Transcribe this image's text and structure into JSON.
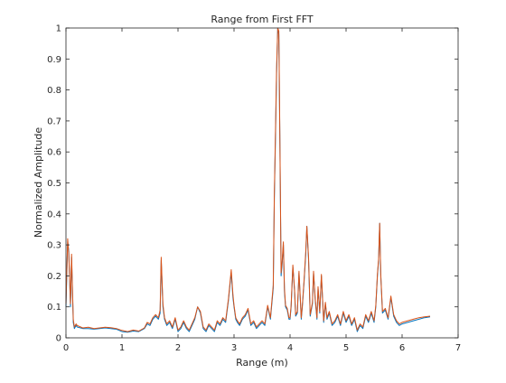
{
  "chart_data": {
    "type": "line",
    "title": "Range from First FFT",
    "xlabel": "Range (m)",
    "ylabel": "Normalized Amplitude",
    "xlim": [
      0,
      7
    ],
    "ylim": [
      0,
      1
    ],
    "xticks": [
      0,
      1,
      2,
      3,
      4,
      5,
      6,
      7
    ],
    "yticks": [
      0,
      0.1,
      0.2,
      0.3,
      0.4,
      0.5,
      0.6,
      0.7,
      0.8,
      0.9,
      1
    ],
    "xtick_labels": [
      "0",
      "1",
      "2",
      "3",
      "4",
      "5",
      "6",
      "7"
    ],
    "ytick_labels": [
      "0",
      "0.1",
      "0.2",
      "0.3",
      "0.4",
      "0.5",
      "0.6",
      "0.7",
      "0.8",
      "0.9",
      "1"
    ],
    "grid": false,
    "legend": "none",
    "colors": {
      "series1": "#0072BD",
      "series2": "#D95319",
      "axis": "#262626"
    },
    "series": [
      {
        "x": [
          0,
          0.03,
          0.05,
          0.08,
          0.1,
          0.13,
          0.15,
          0.18,
          0.2,
          0.3,
          0.4,
          0.5,
          0.6,
          0.7,
          0.8,
          0.9,
          1.0,
          1.1,
          1.2,
          1.3,
          1.4,
          1.45,
          1.5,
          1.55,
          1.6,
          1.65,
          1.68,
          1.7,
          1.73,
          1.76,
          1.8,
          1.85,
          1.9,
          1.95,
          2.0,
          2.05,
          2.1,
          2.15,
          2.2,
          2.25,
          2.3,
          2.35,
          2.4,
          2.45,
          2.5,
          2.55,
          2.6,
          2.65,
          2.7,
          2.75,
          2.8,
          2.85,
          2.9,
          2.95,
          2.98,
          3.0,
          3.03,
          3.06,
          3.1,
          3.15,
          3.2,
          3.25,
          3.3,
          3.35,
          3.4,
          3.45,
          3.5,
          3.55,
          3.6,
          3.65,
          3.7,
          3.72,
          3.74,
          3.76,
          3.78,
          3.8,
          3.82,
          3.84,
          3.86,
          3.88,
          3.9,
          3.92,
          3.95,
          3.98,
          4.0,
          4.02,
          4.05,
          4.08,
          4.1,
          4.13,
          4.16,
          4.2,
          4.22,
          4.25,
          4.28,
          4.3,
          4.33,
          4.36,
          4.4,
          4.42,
          4.45,
          4.48,
          4.5,
          4.53,
          4.56,
          4.6,
          4.63,
          4.66,
          4.7,
          4.75,
          4.8,
          4.85,
          4.9,
          4.95,
          5.0,
          5.05,
          5.1,
          5.15,
          5.2,
          5.25,
          5.3,
          5.35,
          5.4,
          5.45,
          5.5,
          5.53,
          5.56,
          5.58,
          5.6,
          5.62,
          5.65,
          5.7,
          5.75,
          5.8,
          5.85,
          5.9,
          5.95,
          6.0,
          6.1,
          6.2,
          6.3,
          6.4,
          6.5
        ],
        "y": [
          0.1,
          0.31,
          0.28,
          0.1,
          0.26,
          0.05,
          0.03,
          0.04,
          0.035,
          0.03,
          0.03,
          0.028,
          0.03,
          0.032,
          0.03,
          0.028,
          0.02,
          0.018,
          0.022,
          0.02,
          0.03,
          0.045,
          0.04,
          0.06,
          0.07,
          0.06,
          0.08,
          0.25,
          0.1,
          0.06,
          0.04,
          0.05,
          0.03,
          0.06,
          0.02,
          0.03,
          0.05,
          0.03,
          0.02,
          0.04,
          0.06,
          0.1,
          0.08,
          0.03,
          0.02,
          0.04,
          0.03,
          0.02,
          0.05,
          0.04,
          0.06,
          0.05,
          0.12,
          0.21,
          0.13,
          0.1,
          0.06,
          0.05,
          0.04,
          0.06,
          0.07,
          0.09,
          0.04,
          0.05,
          0.03,
          0.04,
          0.05,
          0.04,
          0.1,
          0.06,
          0.16,
          0.45,
          0.65,
          0.85,
          1.0,
          0.98,
          0.62,
          0.2,
          0.24,
          0.3,
          0.15,
          0.1,
          0.09,
          0.06,
          0.06,
          0.1,
          0.23,
          0.15,
          0.07,
          0.08,
          0.21,
          0.06,
          0.1,
          0.18,
          0.27,
          0.36,
          0.25,
          0.07,
          0.11,
          0.21,
          0.12,
          0.06,
          0.16,
          0.08,
          0.2,
          0.05,
          0.11,
          0.06,
          0.08,
          0.04,
          0.05,
          0.07,
          0.04,
          0.08,
          0.05,
          0.07,
          0.04,
          0.06,
          0.02,
          0.04,
          0.03,
          0.07,
          0.05,
          0.08,
          0.05,
          0.1,
          0.2,
          0.25,
          0.37,
          0.2,
          0.08,
          0.09,
          0.06,
          0.13,
          0.07,
          0.05,
          0.04,
          0.045,
          0.05,
          0.055,
          0.06,
          0.065,
          0.068
        ]
      },
      {
        "x": [
          0,
          0.03,
          0.05,
          0.08,
          0.1,
          0.13,
          0.15,
          0.18,
          0.2,
          0.3,
          0.4,
          0.5,
          0.6,
          0.7,
          0.8,
          0.9,
          1.0,
          1.1,
          1.2,
          1.3,
          1.4,
          1.45,
          1.5,
          1.55,
          1.6,
          1.65,
          1.68,
          1.7,
          1.73,
          1.76,
          1.8,
          1.85,
          1.9,
          1.95,
          2.0,
          2.05,
          2.1,
          2.15,
          2.2,
          2.25,
          2.3,
          2.35,
          2.4,
          2.45,
          2.5,
          2.55,
          2.6,
          2.65,
          2.7,
          2.75,
          2.8,
          2.85,
          2.9,
          2.95,
          2.98,
          3.0,
          3.03,
          3.06,
          3.1,
          3.15,
          3.2,
          3.25,
          3.3,
          3.35,
          3.4,
          3.45,
          3.5,
          3.55,
          3.6,
          3.65,
          3.7,
          3.72,
          3.74,
          3.76,
          3.78,
          3.8,
          3.82,
          3.84,
          3.86,
          3.88,
          3.9,
          3.92,
          3.95,
          3.98,
          4.0,
          4.02,
          4.05,
          4.08,
          4.1,
          4.13,
          4.16,
          4.2,
          4.22,
          4.25,
          4.28,
          4.3,
          4.33,
          4.36,
          4.4,
          4.42,
          4.45,
          4.48,
          4.5,
          4.53,
          4.56,
          4.6,
          4.63,
          4.66,
          4.7,
          4.75,
          4.8,
          4.85,
          4.9,
          4.95,
          5.0,
          5.05,
          5.1,
          5.15,
          5.2,
          5.25,
          5.3,
          5.35,
          5.4,
          5.45,
          5.5,
          5.53,
          5.56,
          5.58,
          5.6,
          5.62,
          5.65,
          5.7,
          5.75,
          5.8,
          5.85,
          5.9,
          5.95,
          6.0,
          6.1,
          6.2,
          6.3,
          6.4,
          6.5
        ],
        "y": [
          0.11,
          0.32,
          0.27,
          0.11,
          0.27,
          0.06,
          0.035,
          0.045,
          0.04,
          0.032,
          0.034,
          0.03,
          0.032,
          0.034,
          0.033,
          0.03,
          0.024,
          0.02,
          0.025,
          0.022,
          0.032,
          0.05,
          0.045,
          0.065,
          0.075,
          0.065,
          0.09,
          0.26,
          0.11,
          0.065,
          0.045,
          0.055,
          0.035,
          0.065,
          0.025,
          0.035,
          0.055,
          0.035,
          0.025,
          0.045,
          0.065,
          0.1,
          0.085,
          0.035,
          0.025,
          0.045,
          0.035,
          0.025,
          0.055,
          0.045,
          0.065,
          0.055,
          0.125,
          0.22,
          0.14,
          0.105,
          0.065,
          0.055,
          0.045,
          0.065,
          0.075,
          0.095,
          0.045,
          0.055,
          0.035,
          0.045,
          0.055,
          0.045,
          0.105,
          0.065,
          0.17,
          0.46,
          0.67,
          0.87,
          1.0,
          0.99,
          0.63,
          0.21,
          0.25,
          0.31,
          0.16,
          0.105,
          0.095,
          0.065,
          0.065,
          0.105,
          0.235,
          0.155,
          0.075,
          0.085,
          0.215,
          0.065,
          0.105,
          0.185,
          0.28,
          0.36,
          0.26,
          0.075,
          0.115,
          0.215,
          0.125,
          0.065,
          0.165,
          0.085,
          0.205,
          0.055,
          0.115,
          0.065,
          0.085,
          0.045,
          0.055,
          0.075,
          0.045,
          0.085,
          0.055,
          0.075,
          0.045,
          0.065,
          0.025,
          0.045,
          0.035,
          0.075,
          0.055,
          0.085,
          0.055,
          0.105,
          0.205,
          0.255,
          0.37,
          0.205,
          0.085,
          0.095,
          0.065,
          0.135,
          0.075,
          0.055,
          0.045,
          0.05,
          0.055,
          0.06,
          0.065,
          0.068,
          0.07
        ]
      }
    ]
  }
}
